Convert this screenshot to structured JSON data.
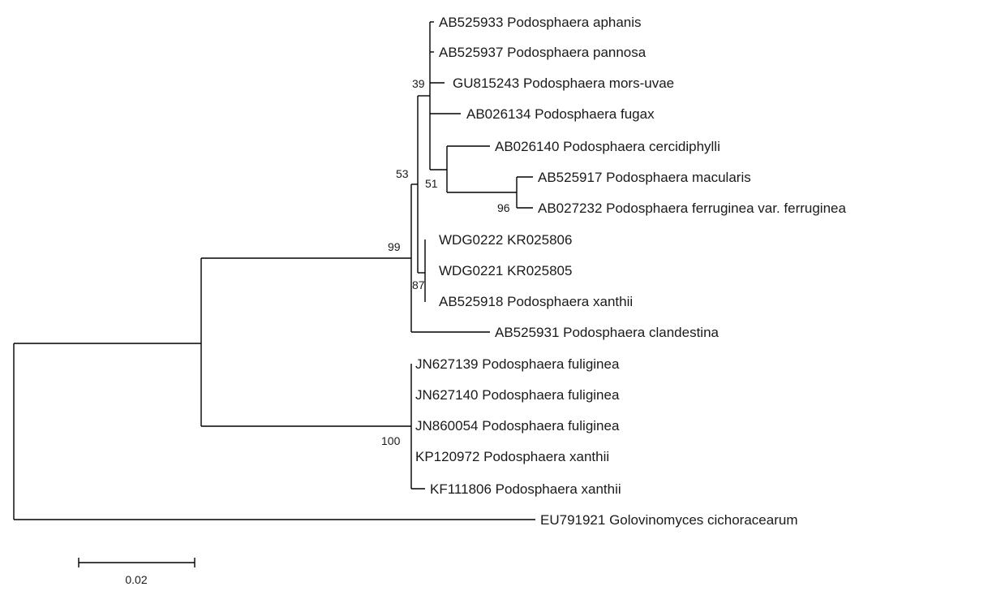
{
  "taxa": {
    "ab525933": "AB525933 Podosphaera aphanis",
    "ab525937": "AB525937 Podosphaera pannosa",
    "gu815243": "GU815243 Podosphaera mors-uvae",
    "ab026134": "AB026134 Podosphaera fugax",
    "ab026140": "AB026140 Podosphaera cercidiphylli",
    "ab525917": "AB525917 Podosphaera macularis",
    "ab027232": "AB027232 Podosphaera ferruginea var. ferruginea",
    "wdg0222": "WDG0222 KR025806",
    "wdg0221": "WDG0221 KR025805",
    "ab525918": "AB525918 Podosphaera xanthii",
    "ab525931": "AB525931 Podosphaera clandestina",
    "jn627139": "JN627139 Podosphaera fuliginea",
    "jn627140": "JN627140 Podosphaera fuliginea",
    "jn860054": "JN860054 Podosphaera fuliginea",
    "kp120972": "KP120972 Podosphaera xanthii",
    "kf111806": "KF111806 Podosphaera xanthii",
    "eu791921": "EU791921 Golovinomyces cichoracearum"
  },
  "support": {
    "n39": "39",
    "n53": "53",
    "n51": "51",
    "n96": "96",
    "n99": "99",
    "n87": "87",
    "n100": "100"
  },
  "scale_bar": {
    "label": "0.02"
  }
}
